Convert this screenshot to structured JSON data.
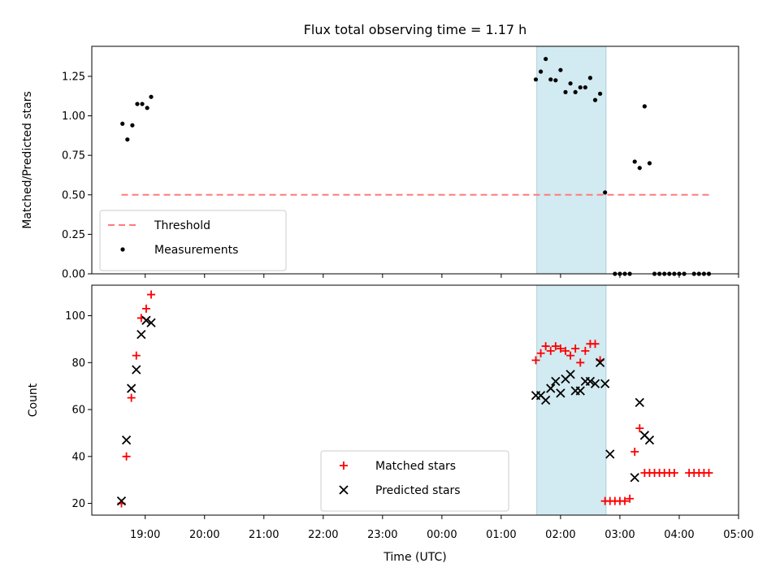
{
  "chart_data": {
    "title": "Flux total observing time = 1.17 h",
    "xlabel": "Time (UTC)",
    "x_ticks": [
      "19:00",
      "20:00",
      "21:00",
      "22:00",
      "23:00",
      "00:00",
      "01:00",
      "02:00",
      "03:00",
      "04:00",
      "05:00"
    ],
    "x_range": [
      "18:06",
      "05:00"
    ],
    "x_tick_start": "19:00",
    "shaded_interval": [
      "01:36",
      "02:46"
    ],
    "shade_color": "#add8e6",
    "panels": [
      {
        "type": "scatter",
        "ylabel": "Matched/Predicted stars",
        "ylim": [
          0,
          1.44
        ],
        "y_ticks": [
          0,
          0.25,
          0.5,
          0.75,
          1.0,
          1.25
        ],
        "y_tick_labels": [
          "0.00",
          "0.25",
          "0.50",
          "0.75",
          "1.00",
          "1.25"
        ],
        "legend": "lower-left",
        "threshold": {
          "name": "Threshold",
          "value": 0.5,
          "x_start": "18:36",
          "x_end": "04:30",
          "color": "#ff7a7a"
        },
        "series": [
          {
            "name": "Measurements",
            "marker": "dot",
            "color": "#000000",
            "points": [
              [
                "18:37",
                0.95
              ],
              [
                "18:42",
                0.85
              ],
              [
                "18:47",
                0.94
              ],
              [
                "18:52",
                1.075
              ],
              [
                "18:57",
                1.075
              ],
              [
                "19:02",
                1.05
              ],
              [
                "19:06",
                1.12
              ],
              [
                "01:35",
                1.23
              ],
              [
                "01:40",
                1.28
              ],
              [
                "01:45",
                1.36
              ],
              [
                "01:50",
                1.23
              ],
              [
                "01:55",
                1.225
              ],
              [
                "02:00",
                1.29
              ],
              [
                "02:05",
                1.15
              ],
              [
                "02:10",
                1.205
              ],
              [
                "02:15",
                1.15
              ],
              [
                "02:20",
                1.18
              ],
              [
                "02:25",
                1.18
              ],
              [
                "02:30",
                1.24
              ],
              [
                "02:35",
                1.1
              ],
              [
                "02:40",
                1.14
              ],
              [
                "02:45",
                0.515
              ],
              [
                "02:55",
                0.0
              ],
              [
                "03:00",
                0.0
              ],
              [
                "03:05",
                0.0
              ],
              [
                "03:10",
                0.0
              ],
              [
                "03:15",
                0.71
              ],
              [
                "03:20",
                0.67
              ],
              [
                "03:25",
                1.06
              ],
              [
                "03:30",
                0.7
              ],
              [
                "03:35",
                0.0
              ],
              [
                "03:40",
                0.0
              ],
              [
                "03:45",
                0.0
              ],
              [
                "03:50",
                0.0
              ],
              [
                "03:55",
                0.0
              ],
              [
                "04:00",
                0.0
              ],
              [
                "04:05",
                0.0
              ],
              [
                "04:15",
                0.0
              ],
              [
                "04:20",
                0.0
              ],
              [
                "04:25",
                0.0
              ],
              [
                "04:30",
                0.0
              ]
            ]
          }
        ]
      },
      {
        "type": "scatter",
        "ylabel": "Count",
        "ylim": [
          15,
          113
        ],
        "y_ticks": [
          20,
          40,
          60,
          80,
          100
        ],
        "y_tick_labels": [
          "20",
          "40",
          "60",
          "80",
          "100"
        ],
        "legend": "lower-center",
        "series": [
          {
            "name": "Matched stars",
            "marker": "plus",
            "color": "#ff0000",
            "points": [
              [
                "18:36",
                20
              ],
              [
                "18:41",
                40
              ],
              [
                "18:46",
                65
              ],
              [
                "18:51",
                83
              ],
              [
                "18:56",
                99
              ],
              [
                "19:01",
                103
              ],
              [
                "19:06",
                109
              ],
              [
                "01:35",
                81
              ],
              [
                "01:40",
                84
              ],
              [
                "01:45",
                87
              ],
              [
                "01:50",
                85
              ],
              [
                "01:55",
                87
              ],
              [
                "02:00",
                86
              ],
              [
                "02:05",
                85
              ],
              [
                "02:10",
                83
              ],
              [
                "02:15",
                86
              ],
              [
                "02:20",
                80
              ],
              [
                "02:25",
                85
              ],
              [
                "02:30",
                88
              ],
              [
                "02:35",
                88
              ],
              [
                "02:40",
                81
              ],
              [
                "02:45",
                21
              ],
              [
                "02:50",
                21
              ],
              [
                "02:55",
                21
              ],
              [
                "03:00",
                21
              ],
              [
                "03:05",
                21
              ],
              [
                "03:10",
                22
              ],
              [
                "03:15",
                42
              ],
              [
                "03:20",
                52
              ],
              [
                "03:25",
                33
              ],
              [
                "03:30",
                33
              ],
              [
                "03:35",
                33
              ],
              [
                "03:40",
                33
              ],
              [
                "03:45",
                33
              ],
              [
                "03:50",
                33
              ],
              [
                "03:55",
                33
              ],
              [
                "04:10",
                33
              ],
              [
                "04:15",
                33
              ],
              [
                "04:20",
                33
              ],
              [
                "04:25",
                33
              ],
              [
                "04:30",
                33
              ]
            ]
          },
          {
            "name": "Predicted stars",
            "marker": "x",
            "color": "#000000",
            "points": [
              [
                "18:36",
                21
              ],
              [
                "18:41",
                47
              ],
              [
                "18:46",
                69
              ],
              [
                "18:51",
                77
              ],
              [
                "18:56",
                92
              ],
              [
                "19:01",
                98
              ],
              [
                "19:06",
                97
              ],
              [
                "01:35",
                66
              ],
              [
                "01:40",
                66
              ],
              [
                "01:45",
                64
              ],
              [
                "01:50",
                69
              ],
              [
                "01:55",
                72
              ],
              [
                "02:00",
                67
              ],
              [
                "02:05",
                73
              ],
              [
                "02:10",
                75
              ],
              [
                "02:15",
                68
              ],
              [
                "02:20",
                68
              ],
              [
                "02:25",
                72
              ],
              [
                "02:30",
                72
              ],
              [
                "02:35",
                71
              ],
              [
                "02:40",
                80
              ],
              [
                "02:45",
                71
              ],
              [
                "02:50",
                41
              ],
              [
                "03:15",
                31
              ],
              [
                "03:20",
                63
              ],
              [
                "03:25",
                49
              ],
              [
                "03:30",
                47
              ]
            ]
          }
        ]
      }
    ]
  }
}
